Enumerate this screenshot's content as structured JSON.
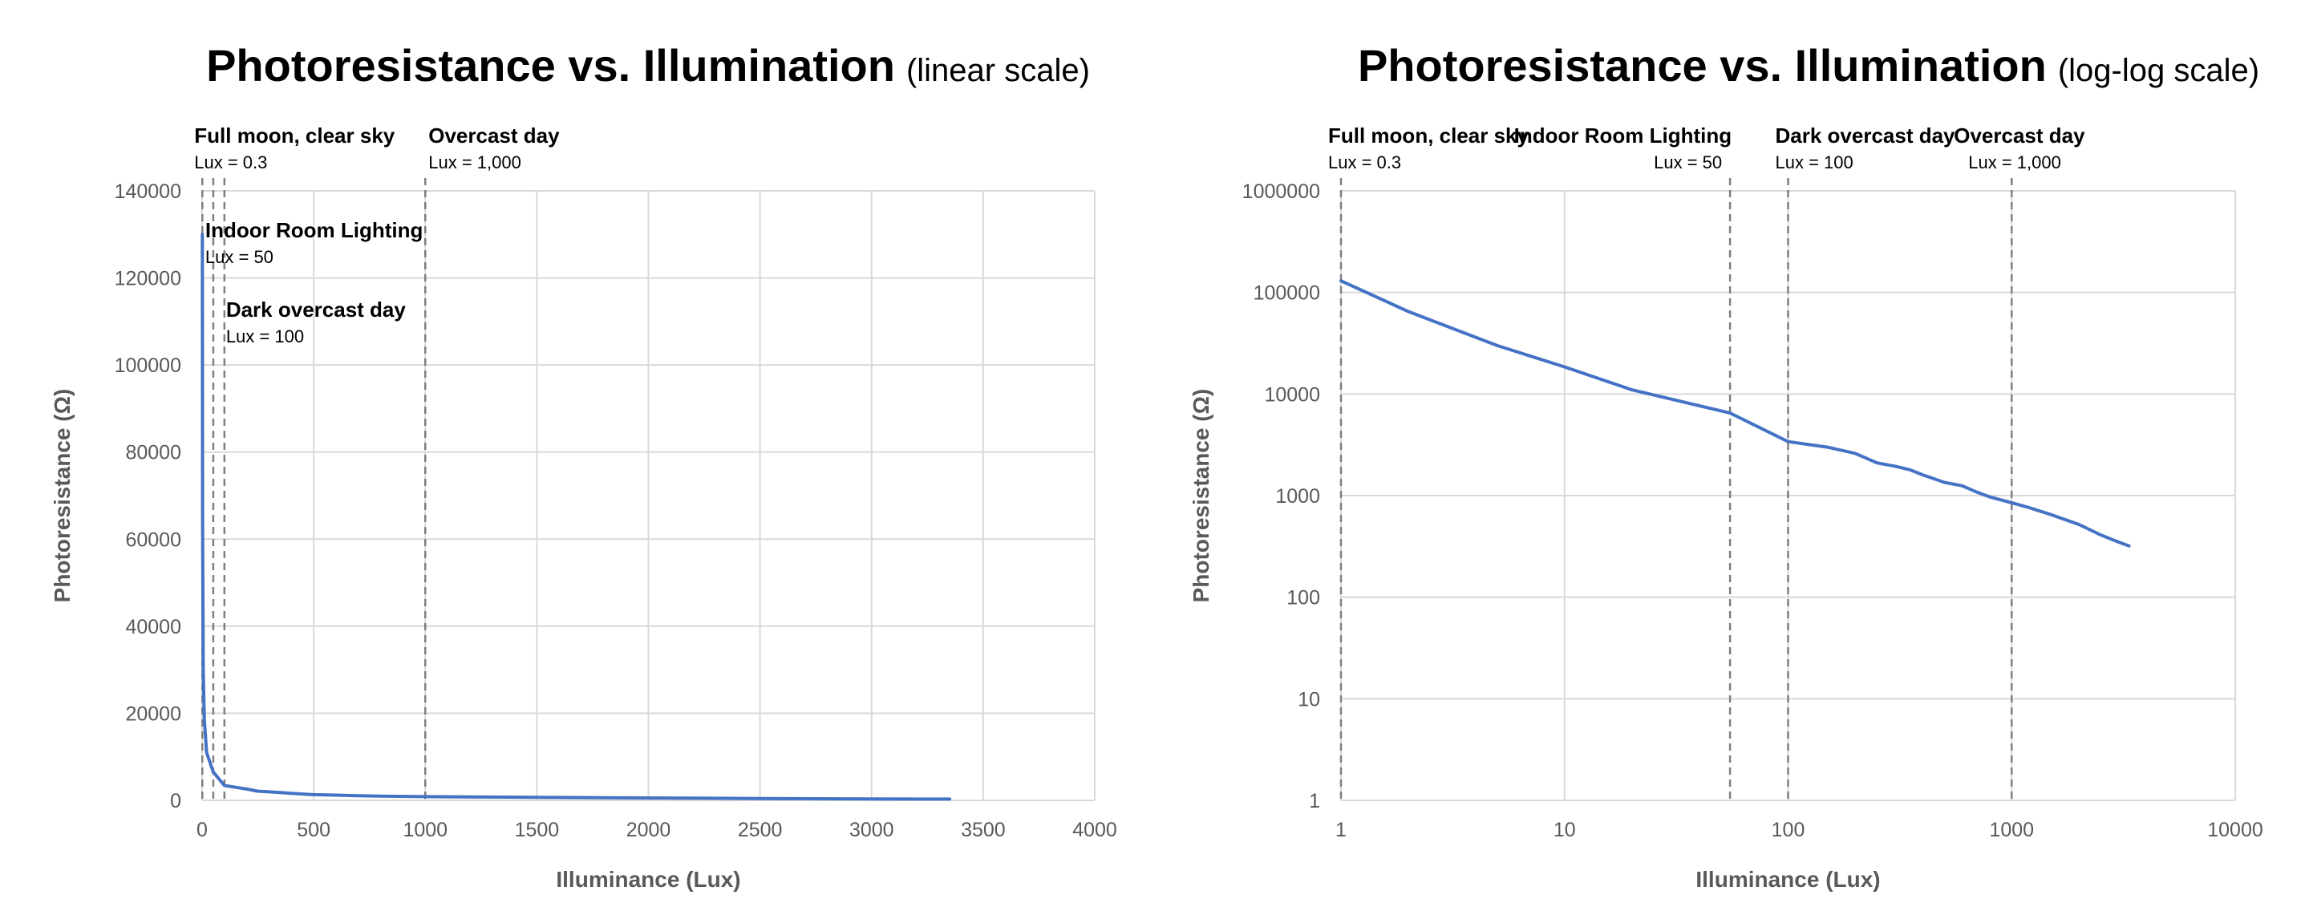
{
  "chart_data": [
    {
      "type": "line",
      "title": "Photoresistance vs. Illumination",
      "subtitle": "(linear scale)",
      "xlabel": "Illuminance (Lux)",
      "ylabel": "Photoresistance (Ω)",
      "x_scale": "linear",
      "y_scale": "linear",
      "xlim": [
        0,
        4000
      ],
      "ylim": [
        0,
        140000
      ],
      "x_ticks": [
        0,
        500,
        1000,
        1500,
        2000,
        2500,
        3000,
        3500,
        4000
      ],
      "y_ticks": [
        0,
        20000,
        40000,
        60000,
        80000,
        100000,
        120000,
        140000
      ],
      "x_tick_labels": [
        "0",
        "500",
        "1000",
        "1500",
        "2000",
        "2500",
        "3000",
        "3500",
        "4000"
      ],
      "y_tick_labels": [
        "0",
        "20000",
        "40000",
        "60000",
        "80000",
        "100000",
        "120000",
        "140000"
      ],
      "grid": true,
      "series_color": "#4472c4",
      "reference_color": "#7f7f7f",
      "series": [
        {
          "x": [
            1,
            2,
            5,
            10,
            20,
            50,
            100,
            150,
            200,
            250,
            300,
            350,
            400,
            500,
            600,
            700,
            800,
            1000,
            1200,
            1500,
            2000,
            2500,
            3000,
            3350
          ],
          "y": [
            130000,
            65000,
            30000,
            18500,
            11000,
            6500,
            3400,
            3000,
            2600,
            2100,
            1950,
            1800,
            1600,
            1300,
            1200,
            1050,
            950,
            850,
            780,
            700,
            550,
            420,
            340,
            300
          ]
        }
      ],
      "annotations": [
        {
          "label": "Full moon, clear sky",
          "value": "Lux = 0.3",
          "x": 1
        },
        {
          "label": "Indoor Room Lighting",
          "value": "Lux = 50",
          "x": 50
        },
        {
          "label": "Dark overcast day",
          "value": "Lux = 100",
          "x": 100
        },
        {
          "label": "Overcast day",
          "value": "Lux = 1,000",
          "x": 1000
        }
      ]
    },
    {
      "type": "line",
      "title": "Photoresistance vs. Illumination",
      "subtitle": "(log-log scale)",
      "xlabel": "Illuminance (Lux)",
      "ylabel": "Photoresistance (Ω)",
      "x_scale": "log",
      "y_scale": "log",
      "xlim": [
        1,
        10000
      ],
      "ylim": [
        1,
        1000000
      ],
      "x_ticks": [
        1,
        10,
        100,
        1000,
        10000
      ],
      "y_ticks": [
        1,
        10,
        100,
        1000,
        10000,
        100000,
        1000000
      ],
      "x_tick_labels": [
        "1",
        "10",
        "100",
        "1000",
        "10000"
      ],
      "y_tick_labels": [
        "1",
        "10",
        "100",
        "1000",
        "10000",
        "100000",
        "1000000"
      ],
      "grid": true,
      "series_color": "#4472c4",
      "reference_color": "#7f7f7f",
      "series": [
        {
          "x": [
            1,
            2,
            5,
            10,
            20,
            55,
            100,
            150,
            200,
            250,
            300,
            350,
            400,
            500,
            600,
            700,
            800,
            1000,
            1200,
            1500,
            2000,
            2500,
            3000,
            3350
          ],
          "y": [
            130000,
            65000,
            30000,
            18500,
            11000,
            6500,
            3400,
            3000,
            2600,
            2100,
            1950,
            1800,
            1600,
            1350,
            1250,
            1080,
            970,
            850,
            760,
            650,
            520,
            410,
            350,
            320
          ]
        }
      ],
      "annotations": [
        {
          "label": "Full moon, clear sky",
          "value": "Lux = 0.3",
          "x": 1
        },
        {
          "label": "Indoor Room Lighting",
          "value": "Lux = 50",
          "x": 55
        },
        {
          "label": "Dark overcast day",
          "value": "Lux = 100",
          "x": 100
        },
        {
          "label": "Overcast day",
          "value": "Lux = 1,000",
          "x": 1000
        }
      ]
    }
  ]
}
